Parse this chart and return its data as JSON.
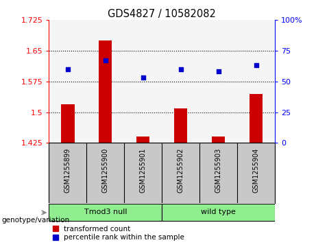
{
  "title": "GDS4827 / 10582082",
  "samples": [
    "GSM1255899",
    "GSM1255900",
    "GSM1255901",
    "GSM1255902",
    "GSM1255903",
    "GSM1255904"
  ],
  "bar_values": [
    1.52,
    1.675,
    1.44,
    1.51,
    1.44,
    1.545
  ],
  "scatter_values": [
    60,
    67,
    53,
    60,
    58,
    63
  ],
  "bar_color": "#cc0000",
  "scatter_color": "#0000cc",
  "bar_bottom": 1.425,
  "ylim_left": [
    1.425,
    1.725
  ],
  "ylim_right": [
    0,
    100
  ],
  "yticks_left": [
    1.425,
    1.5,
    1.575,
    1.65,
    1.725
  ],
  "yticks_right": [
    0,
    25,
    50,
    75,
    100
  ],
  "ytick_labels_left": [
    "1.425",
    "1.5",
    "1.575",
    "1.65",
    "1.725"
  ],
  "ytick_labels_right": [
    "0",
    "25",
    "50",
    "75",
    "100%"
  ],
  "groups": [
    {
      "label": "Tmod3 null",
      "start": 0,
      "end": 2,
      "color": "#90ee90"
    },
    {
      "label": "wild type",
      "start": 3,
      "end": 5,
      "color": "#90ee90"
    }
  ],
  "group_label": "genotype/variation",
  "legend_bar_label": "transformed count",
  "legend_scatter_label": "percentile rank within the sample",
  "bg_color": "#c8c8c8",
  "plot_bg": "#ffffff",
  "dotted_yticks": [
    1.5,
    1.575,
    1.65
  ]
}
